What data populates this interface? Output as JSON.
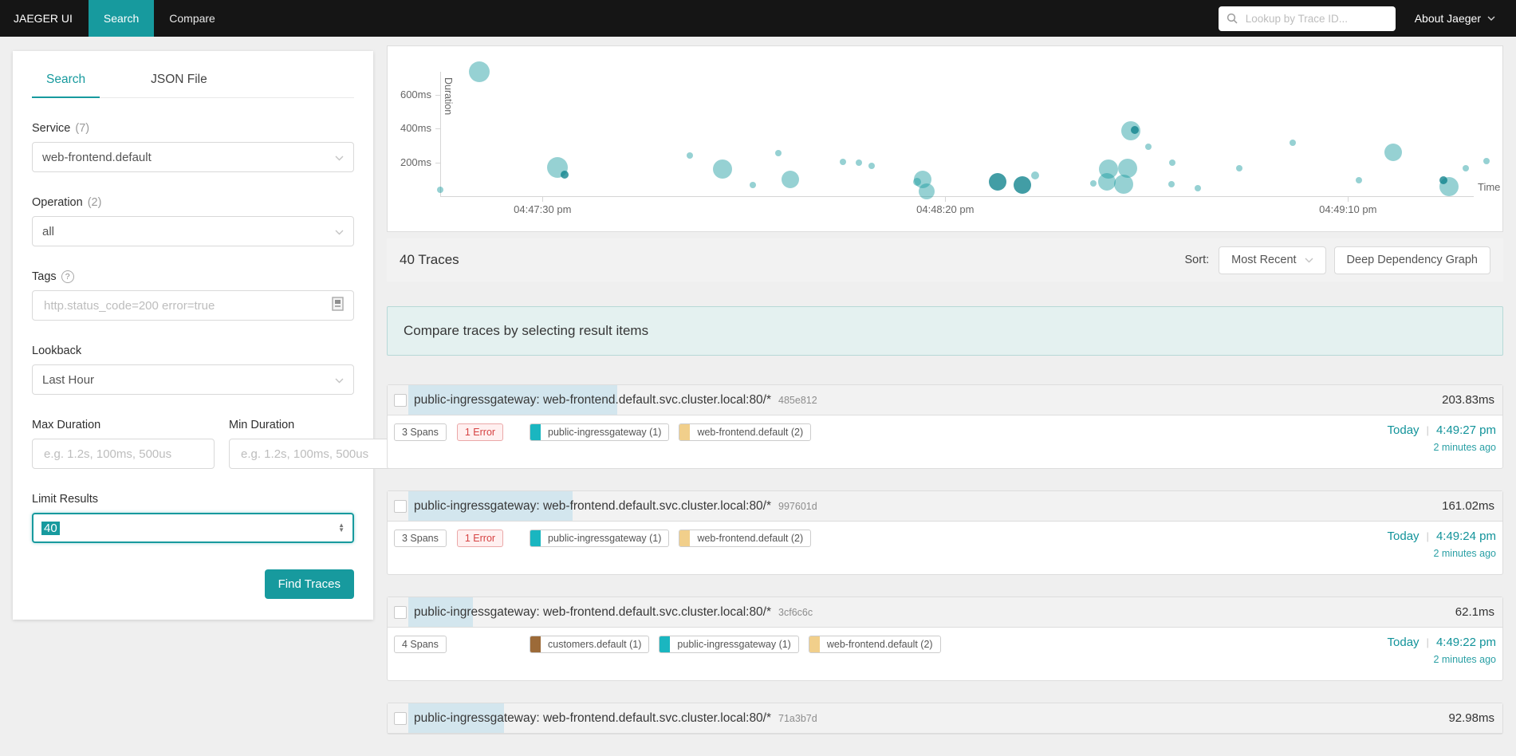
{
  "colors": {
    "accent": "#179a9e",
    "link": "#11939a",
    "nav_background": "#151515",
    "scatter_bubble": "rgba(23,152,158,0.45)",
    "scatter_bubble_dark": "rgba(13,130,140,0.78)",
    "duration_bar": "#d3e6ee",
    "banner_background": "#e4f1f0",
    "banner_border": "#b7d9d7",
    "error_text": "#d64242",
    "error_background": "#fff0f0"
  },
  "nav": {
    "brand": "JAEGER UI",
    "tabs": [
      {
        "label": "Search",
        "active": true
      },
      {
        "label": "Compare",
        "active": false
      }
    ],
    "trace_lookup_placeholder": "Lookup by Trace ID...",
    "about": "About Jaeger"
  },
  "sidebar": {
    "tabs": [
      {
        "label": "Search",
        "active": true
      },
      {
        "label": "JSON File",
        "active": false
      }
    ],
    "service": {
      "label": "Service",
      "count": "(7)",
      "value": "web-frontend.default"
    },
    "operation": {
      "label": "Operation",
      "count": "(2)",
      "value": "all"
    },
    "tags": {
      "label": "Tags",
      "placeholder": "http.status_code=200 error=true"
    },
    "lookback": {
      "label": "Lookback",
      "value": "Last Hour"
    },
    "max_duration": {
      "label": "Max Duration",
      "placeholder": "e.g. 1.2s, 100ms, 500us"
    },
    "min_duration": {
      "label": "Min Duration",
      "placeholder": "e.g. 1.2s, 100ms, 500us"
    },
    "limit": {
      "label": "Limit Results",
      "value": "40"
    },
    "find_button": "Find Traces"
  },
  "chart_data": {
    "type": "scatter",
    "xlabel": "Time",
    "ylabel": "Duration",
    "x_tick_labels": [
      "04:47:30 pm",
      "04:48:20 pm",
      "04:49:10 pm"
    ],
    "x_tick_seconds": [
      12.7,
      62.7,
      112.7
    ],
    "y_tick_labels": [
      "200ms",
      "400ms",
      "600ms"
    ],
    "y_tick_ms": [
      200,
      400,
      600
    ],
    "x_axis_span_seconds": [
      0,
      130
    ],
    "y_axis_span_ms": [
      0,
      760
    ],
    "points": [
      {
        "t": 4.9,
        "d": 734,
        "r": 13
      },
      {
        "t": 0,
        "d": 38,
        "r": 4
      },
      {
        "t": 14.6,
        "d": 169,
        "r": 13
      },
      {
        "t": 15.4,
        "d": 127,
        "r": 5,
        "k": 1
      },
      {
        "t": 31,
        "d": 240,
        "r": 4
      },
      {
        "t": 35,
        "d": 160,
        "r": 12
      },
      {
        "t": 38.8,
        "d": 66,
        "r": 4
      },
      {
        "t": 42,
        "d": 254,
        "r": 4
      },
      {
        "t": 43.5,
        "d": 99,
        "r": 11
      },
      {
        "t": 50,
        "d": 202,
        "r": 4
      },
      {
        "t": 52,
        "d": 198,
        "r": 4
      },
      {
        "t": 53.6,
        "d": 179,
        "r": 4
      },
      {
        "t": 59.2,
        "d": 85,
        "r": 5
      },
      {
        "t": 59.9,
        "d": 99,
        "r": 11
      },
      {
        "t": 60.4,
        "d": 28,
        "r": 10
      },
      {
        "t": 69.2,
        "d": 85,
        "r": 11,
        "k": 1
      },
      {
        "t": 72.3,
        "d": 66,
        "r": 11,
        "k": 1
      },
      {
        "t": 73.9,
        "d": 122,
        "r": 5
      },
      {
        "t": 81.1,
        "d": 75,
        "r": 4
      },
      {
        "t": 82.8,
        "d": 85,
        "r": 11
      },
      {
        "t": 83,
        "d": 160,
        "r": 12
      },
      {
        "t": 85.3,
        "d": 165,
        "r": 12
      },
      {
        "t": 84.9,
        "d": 71,
        "r": 12
      },
      {
        "t": 85.7,
        "d": 386,
        "r": 12
      },
      {
        "t": 86.2,
        "d": 390,
        "r": 5,
        "k": 1
      },
      {
        "t": 87.9,
        "d": 292,
        "r": 4
      },
      {
        "t": 90.9,
        "d": 198,
        "r": 4
      },
      {
        "t": 90.8,
        "d": 71,
        "r": 4
      },
      {
        "t": 94.1,
        "d": 47,
        "r": 4
      },
      {
        "t": 99.2,
        "d": 165,
        "r": 4
      },
      {
        "t": 105.8,
        "d": 315,
        "r": 4
      },
      {
        "t": 114.1,
        "d": 94,
        "r": 4
      },
      {
        "t": 118.3,
        "d": 259,
        "r": 11
      },
      {
        "t": 125.2,
        "d": 56,
        "r": 12
      },
      {
        "t": 124.6,
        "d": 94,
        "r": 5,
        "k": 1
      },
      {
        "t": 127.3,
        "d": 165,
        "r": 4
      },
      {
        "t": 129.9,
        "d": 207,
        "r": 4
      }
    ]
  },
  "results": {
    "count_label": "40 Traces",
    "sort_label": "Sort:",
    "sort_value": "Most Recent",
    "ddg_button": "Deep Dependency Graph",
    "compare_banner": "Compare traces by selecting result items",
    "traces": [
      {
        "title": "public-ingressgateway: web-frontend.default.svc.cluster.local:80/*",
        "id": "485e812",
        "duration": "203.83ms",
        "bar_pct": 20.2,
        "spans": "3 Spans",
        "errors": "1 Error",
        "services": [
          {
            "name": "public-ingressgateway (1)",
            "color": "#1ab6c0"
          },
          {
            "name": "web-frontend.default (2)",
            "color": "#f1cf8b"
          }
        ],
        "date": "Today",
        "time": "4:49:27 pm",
        "relative": "2 minutes ago"
      },
      {
        "title": "public-ingressgateway: web-frontend.default.svc.cluster.local:80/*",
        "id": "997601d",
        "duration": "161.02ms",
        "bar_pct": 15.9,
        "spans": "3 Spans",
        "errors": "1 Error",
        "services": [
          {
            "name": "public-ingressgateway (1)",
            "color": "#1ab6c0"
          },
          {
            "name": "web-frontend.default (2)",
            "color": "#f1cf8b"
          }
        ],
        "date": "Today",
        "time": "4:49:24 pm",
        "relative": "2 minutes ago"
      },
      {
        "title": "public-ingressgateway: web-frontend.default.svc.cluster.local:80/*",
        "id": "3cf6c6c",
        "duration": "62.1ms",
        "bar_pct": 6.2,
        "spans": "4 Spans",
        "errors": null,
        "services": [
          {
            "name": "customers.default (1)",
            "color": "#9c6a38"
          },
          {
            "name": "public-ingressgateway (1)",
            "color": "#1ab6c0"
          },
          {
            "name": "web-frontend.default (2)",
            "color": "#f1cf8b"
          }
        ],
        "date": "Today",
        "time": "4:49:22 pm",
        "relative": "2 minutes ago"
      },
      {
        "title": "public-ingressgateway: web-frontend.default.svc.cluster.local:80/*",
        "id": "71a3b7d",
        "duration": "92.98ms",
        "bar_pct": 9.2,
        "clipped": true
      }
    ]
  }
}
